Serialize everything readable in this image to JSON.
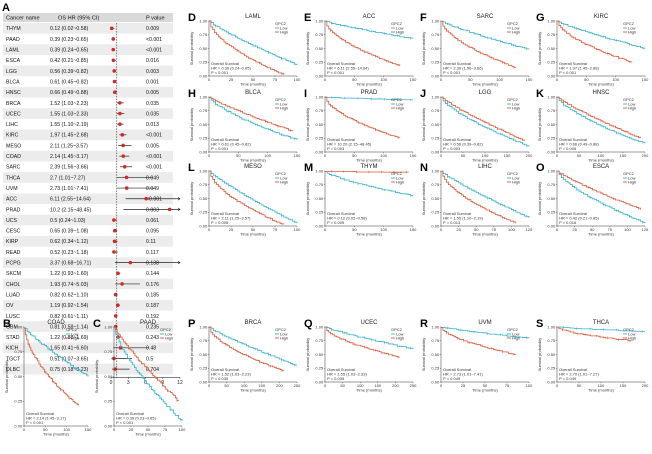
{
  "colors": {
    "low": "#35b0d0",
    "high": "#d85a3b",
    "forest": "#d62828",
    "axis": "#333333"
  },
  "chart_data": [
    {
      "type": "forest",
      "panel": "A",
      "headers": [
        "Cancer name",
        "OS HR (95% CI)",
        "P value"
      ],
      "xticks": [
        "0",
        "3",
        "6",
        "9",
        "12"
      ],
      "xlim": [
        0,
        12
      ],
      "ref_line": 1,
      "rows": [
        {
          "name": "THYM",
          "hr_text": "0.12 (0.02~0.58)",
          "p": "0.009",
          "hr": 0.12,
          "lo": 0.02,
          "hi": 0.58
        },
        {
          "name": "PAAD",
          "hr_text": "0.39 (0.23~0.65)",
          "p": "<0.001",
          "hr": 0.39,
          "lo": 0.23,
          "hi": 0.65
        },
        {
          "name": "LAML",
          "hr_text": "0.39 (0.24~0.65)",
          "p": "<0.001",
          "hr": 0.39,
          "lo": 0.24,
          "hi": 0.65
        },
        {
          "name": "ESCA",
          "hr_text": "0.42 (0.21~0.85)",
          "p": "0.016",
          "hr": 0.42,
          "lo": 0.21,
          "hi": 0.85
        },
        {
          "name": "LGG",
          "hr_text": "0.56 (0.39~0.82)",
          "p": "0.003",
          "hr": 0.56,
          "lo": 0.39,
          "hi": 0.82
        },
        {
          "name": "BLCA",
          "hr_text": "0.61 (0.45~0.82)",
          "p": "0.001",
          "hr": 0.61,
          "lo": 0.45,
          "hi": 0.82
        },
        {
          "name": "HNSC",
          "hr_text": "0.66 (0.49~0.88)",
          "p": "0.005",
          "hr": 0.66,
          "lo": 0.49,
          "hi": 0.88
        },
        {
          "name": "BRCA",
          "hr_text": "1.52 (1.03~2.23)",
          "p": "0.035",
          "hr": 1.52,
          "lo": 1.03,
          "hi": 2.23
        },
        {
          "name": "UCEC",
          "hr_text": "1.55 (1.03~2.33)",
          "p": "0.035",
          "hr": 1.55,
          "lo": 1.03,
          "hi": 2.33
        },
        {
          "name": "LIHC",
          "hr_text": "1.55 (1.10~2.19)",
          "p": "0.013",
          "hr": 1.55,
          "lo": 1.1,
          "hi": 2.19
        },
        {
          "name": "KIRC",
          "hr_text": "1.97 (1.45~2.68)",
          "p": "<0.001",
          "hr": 1.97,
          "lo": 1.45,
          "hi": 2.68
        },
        {
          "name": "MESO",
          "hr_text": "2.11 (1.25~3.57)",
          "p": "0.005",
          "hr": 2.11,
          "lo": 1.25,
          "hi": 3.57
        },
        {
          "name": "COAD",
          "hr_text": "2.14 (1.45~3.17)",
          "p": "<0.001",
          "hr": 2.14,
          "lo": 1.45,
          "hi": 3.17
        },
        {
          "name": "SARC",
          "hr_text": "2.39 (1.56~3.66)",
          "p": "<0.001",
          "hr": 2.39,
          "lo": 1.56,
          "hi": 3.66
        },
        {
          "name": "THCA",
          "hr_text": "2.7 (1.01~7.27)",
          "p": "0.049",
          "hr": 2.7,
          "lo": 1.01,
          "hi": 7.27
        },
        {
          "name": "UVM",
          "hr_text": "2.73 (1.01~7.41)",
          "p": "0.049",
          "hr": 2.73,
          "lo": 1.01,
          "hi": 7.41
        },
        {
          "name": "ACC",
          "hr_text": "6.11 (2.55~14.64)",
          "p": "<0.001",
          "hr": 6.11,
          "lo": 2.55,
          "hi": 14.64
        },
        {
          "name": "PRAD",
          "hr_text": "10.2 (2.15~48.45)",
          "p": "0.003",
          "hr": 10.2,
          "lo": 2.15,
          "hi": 48.45
        },
        {
          "name": "UCS",
          "hr_text": "0.5 (0.24~1.03)",
          "p": "0.061",
          "hr": 0.5,
          "lo": 0.24,
          "hi": 1.03
        },
        {
          "name": "CESC",
          "hr_text": "0.65 (0.39~1.08)",
          "p": "0.095",
          "hr": 0.65,
          "lo": 0.39,
          "hi": 1.08
        },
        {
          "name": "KIRP",
          "hr_text": "0.62 (0.34~1.12)",
          "p": "0.11",
          "hr": 0.62,
          "lo": 0.34,
          "hi": 1.12
        },
        {
          "name": "READ",
          "hr_text": "0.52 (0.23~1.18)",
          "p": "0.117",
          "hr": 0.52,
          "lo": 0.23,
          "hi": 1.18
        },
        {
          "name": "PCPG",
          "hr_text": "3.37 (0.68~16.71)",
          "p": "0.138",
          "hr": 3.37,
          "lo": 0.68,
          "hi": 16.71
        },
        {
          "name": "SKCM",
          "hr_text": "1.22 (0.93~1.60)",
          "p": "0.144",
          "hr": 1.22,
          "lo": 0.93,
          "hi": 1.6
        },
        {
          "name": "CHOL",
          "hr_text": "1.93 (0.74~5.03)",
          "p": "0.176",
          "hr": 1.93,
          "lo": 0.74,
          "hi": 5.03
        },
        {
          "name": "LUAD",
          "hr_text": "0.82 (0.62~1.10)",
          "p": "0.185",
          "hr": 0.82,
          "lo": 0.62,
          "hi": 1.1
        },
        {
          "name": "OV",
          "hr_text": "1.19 (0.92~1.54)",
          "p": "0.187",
          "hr": 1.19,
          "lo": 0.92,
          "hi": 1.54
        },
        {
          "name": "LUSC",
          "hr_text": "0.82 (0.61~1.11)",
          "p": "0.192",
          "hr": 0.82,
          "lo": 0.61,
          "hi": 1.11
        },
        {
          "name": "GBM",
          "hr_text": "0.81 (0.58~1.14)",
          "p": "0.235",
          "hr": 0.81,
          "lo": 0.58,
          "hi": 1.14
        },
        {
          "name": "STAD",
          "hr_text": "1.22 (0.88~1.69)",
          "p": "0.243",
          "hr": 1.22,
          "lo": 0.88,
          "hi": 1.69
        },
        {
          "name": "KICH",
          "hr_text": "1.65 (0.41~6.60)",
          "p": "0.48",
          "hr": 1.65,
          "lo": 0.41,
          "hi": 6.6
        },
        {
          "name": "TGCT",
          "hr_text": "0.51 (0.07~3.65)",
          "p": "0.5",
          "hr": 0.51,
          "lo": 0.07,
          "hi": 3.65
        },
        {
          "name": "DLBC",
          "hr_text": "0.75 (0.18~3.23)",
          "p": "0.704",
          "hr": 0.75,
          "lo": 0.18,
          "hi": 3.23
        }
      ]
    },
    {
      "type": "line",
      "kind": "km_grid",
      "ylabel": "Survival probability",
      "xlabel": "Time (months)",
      "yticks": [
        "0.00",
        "0.25",
        "0.50",
        "0.75",
        "1.00"
      ],
      "legend_title": "GPC2",
      "legend_low": "Low",
      "legend_high": "High",
      "os_label": "Overall Survival",
      "panels": [
        {
          "letter": "D",
          "title": "LAML",
          "hr": "HR = 0.39 (0.24~0.65)",
          "p": "P < 0.001",
          "xmax": 100,
          "xticks": [
            "0",
            "25",
            "50",
            "75",
            "100"
          ],
          "high_dir": "down",
          "low_end": 0.2,
          "high_end": 0.02
        },
        {
          "letter": "E",
          "title": "ACC",
          "hr": "HR = 6.11 (2.55~14.64)",
          "p": "P < 0.001",
          "xmax": 150,
          "xticks": [
            "0",
            "50",
            "100",
            "150"
          ],
          "high_dir": "down",
          "low_end": 0.68,
          "high_end": 0.18
        },
        {
          "letter": "F",
          "title": "SARC",
          "hr": "HR = 2.39 (1.56~3.66)",
          "p": "P < 0.001",
          "xmax": 150,
          "xticks": [
            "0",
            "50",
            "100",
            "150"
          ],
          "high_dir": "down",
          "low_end": 0.48,
          "high_end": 0.15
        },
        {
          "letter": "G",
          "title": "KIRC",
          "hr": "HR = 1.97 (1.45~2.68)",
          "p": "P < 0.001",
          "xmax": 150,
          "xticks": [
            "0",
            "50",
            "100",
            "150"
          ],
          "high_dir": "down",
          "low_end": 0.5,
          "high_end": 0.25
        },
        {
          "letter": "H",
          "title": "BLCA",
          "hr": "HR = 0.61 (0.45~0.82)",
          "p": "P = 0.001",
          "xmax": 150,
          "xticks": [
            "0",
            "50",
            "100",
            "150"
          ],
          "high_dir": "up",
          "low_end": 0.22,
          "high_end": 0.38
        },
        {
          "letter": "I",
          "title": "PRAD",
          "hr": "HR = 10.20 (2.15~48.45)",
          "p": "P = 0.003",
          "xmax": 150,
          "xticks": [
            "0",
            "50",
            "100",
            "150"
          ],
          "high_dir": "down",
          "low_end": 0.95,
          "high_end": 0.25
        },
        {
          "letter": "J",
          "title": "LGG",
          "hr": "HR = 0.56 (0.39~0.82)",
          "p": "P = 0.003",
          "xmax": 200,
          "xticks": [
            "0",
            "50",
            "100",
            "150",
            "200"
          ],
          "high_dir": "up",
          "low_end": 0.1,
          "high_end": 0.2
        },
        {
          "letter": "K",
          "title": "HNSC",
          "hr": "HR = 0.66 (0.49~0.88)",
          "p": "P = 0.005",
          "xmax": 200,
          "xticks": [
            "0",
            "50",
            "100",
            "150",
            "200"
          ],
          "high_dir": "up",
          "low_end": 0.15,
          "high_end": 0.25
        },
        {
          "letter": "L",
          "title": "MESO",
          "hr": "HR = 2.11 (1.25~3.57)",
          "p": "P = 0.005",
          "xmax": 100,
          "xticks": [
            "0",
            "25",
            "50",
            "75",
            "100"
          ],
          "high_dir": "down",
          "low_end": 0.05,
          "high_end": 0.02
        },
        {
          "letter": "M",
          "title": "THYM",
          "hr": "HR = 0.12 (0.02~0.58)",
          "p": "P = 0.009",
          "xmax": 150,
          "xticks": [
            "0",
            "50",
            "100",
            "150"
          ],
          "high_dir": "up",
          "low_end": 0.55,
          "high_end": 0.98
        },
        {
          "letter": "N",
          "title": "LIHC",
          "hr": "HR = 1.55 (1.10~2.19)",
          "p": "P = 0.013",
          "xmax": 125,
          "xticks": [
            "0",
            "25",
            "50",
            "75",
            "100",
            "125"
          ],
          "high_dir": "down",
          "low_end": 0.15,
          "high_end": 0.05
        },
        {
          "letter": "O",
          "title": "ESCA",
          "hr": "HR = 0.42 (0.21~0.85)",
          "p": "P = 0.016",
          "xmax": 125,
          "xticks": [
            "0",
            "25",
            "50",
            "75",
            "100",
            "125"
          ],
          "high_dir": "up",
          "low_end": 0.05,
          "high_end": 0.3
        },
        {
          "letter": "P",
          "title": "BRCA",
          "hr": "HR = 1.52 (1.03~2.23)",
          "p": "P = 0.035",
          "xmax": 250,
          "xticks": [
            "0",
            "50",
            "100",
            "150",
            "200",
            "250"
          ],
          "high_dir": "down",
          "low_end": 0.3,
          "high_end": 0.2
        },
        {
          "letter": "Q",
          "title": "UCEC",
          "hr": "HR = 1.55 (1.03~2.33)",
          "p": "P = 0.035",
          "xmax": 250,
          "xticks": [
            "0",
            "50",
            "100",
            "150",
            "200",
            "250"
          ],
          "high_dir": "down",
          "low_end": 0.6,
          "high_end": 0.45
        },
        {
          "letter": "R",
          "title": "UVM",
          "hr": "HR = 2.73 (1.01~7.41)",
          "p": "P = 0.049",
          "xmax": 100,
          "xticks": [
            "0",
            "25",
            "50",
            "75",
            "100"
          ],
          "high_dir": "down",
          "low_end": 0.8,
          "high_end": 0.5
        },
        {
          "letter": "S",
          "title": "THCA",
          "hr": "HR = 2.70 (1.01~7.27)",
          "p": "P = 0.049",
          "xmax": 200,
          "xticks": [
            "0",
            "50",
            "100",
            "150",
            "200"
          ],
          "high_dir": "down",
          "low_end": 0.92,
          "high_end": 0.75
        },
        {
          "letter": "B",
          "title": "COAD",
          "hr": "HR = 2.14 (1.45~3.17)",
          "p": "P < 0.001",
          "xmax": 150,
          "xticks": [
            "0",
            "50",
            "100",
            "150"
          ],
          "high_dir": "down",
          "low_end": 0.5,
          "high_end": 0.2
        },
        {
          "letter": "C",
          "title": "PAAD",
          "hr": "HR = 0.39 (0.23~0.65)",
          "p": "P < 0.001",
          "xmax": 100,
          "xticks": [
            "0",
            "25",
            "50",
            "75",
            "100"
          ],
          "high_dir": "up",
          "low_end": 0.05,
          "high_end": 0.25
        }
      ]
    }
  ]
}
